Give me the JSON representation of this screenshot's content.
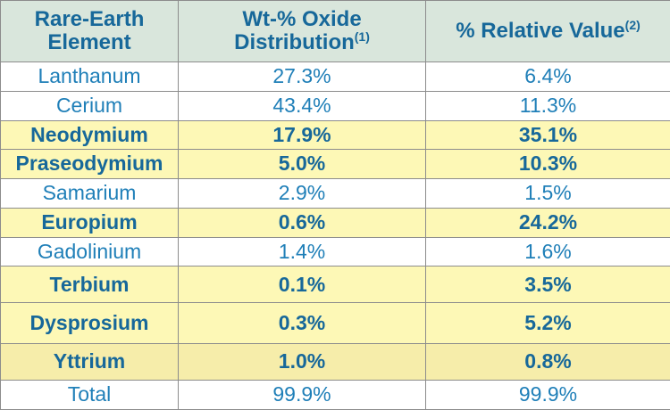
{
  "table": {
    "headers": {
      "element_line1": "Rare-Earth",
      "element_line2": "Element",
      "wt_line1": "Wt-% Oxide",
      "wt_line2": "Distribution",
      "wt_note": "(1)",
      "rel": "% Relative Value",
      "rel_note": "(2)"
    },
    "rows": [
      {
        "element": "Lanthanum",
        "wt": "27.3%",
        "rel": "6.4%",
        "style": "plain"
      },
      {
        "element": "Cerium",
        "wt": "43.4%",
        "rel": "11.3%",
        "style": "plain"
      },
      {
        "element": "Neodymium",
        "wt": "17.9%",
        "rel": "35.1%",
        "style": "highlight"
      },
      {
        "element": "Praseodymium",
        "wt": "5.0%",
        "rel": "10.3%",
        "style": "highlight"
      },
      {
        "element": "Samarium",
        "wt": "2.9%",
        "rel": "1.5%",
        "style": "plain"
      },
      {
        "element": "Europium",
        "wt": "0.6%",
        "rel": "24.2%",
        "style": "highlight"
      },
      {
        "element": "Gadolinium",
        "wt": "1.4%",
        "rel": "1.6%",
        "style": "plain"
      },
      {
        "element": "Terbium",
        "wt": "0.1%",
        "rel": "3.5%",
        "style": "highlight"
      },
      {
        "element": "Dysprosium",
        "wt": "0.3%",
        "rel": "5.2%",
        "style": "highlight"
      },
      {
        "element": "Yttrium",
        "wt": "1.0%",
        "rel": "0.8%",
        "style": "highlight-alt"
      },
      {
        "element": "Total",
        "wt": "99.9%",
        "rel": "99.9%",
        "style": "plain"
      }
    ]
  },
  "colors": {
    "header_bg": "#d9e6dc",
    "header_text": "#17689a",
    "body_text": "#1f7fb8",
    "highlight_bg": "#fdf8b6",
    "highlight_alt_bg": "#f6edaa",
    "border": "#8c8c8c"
  }
}
